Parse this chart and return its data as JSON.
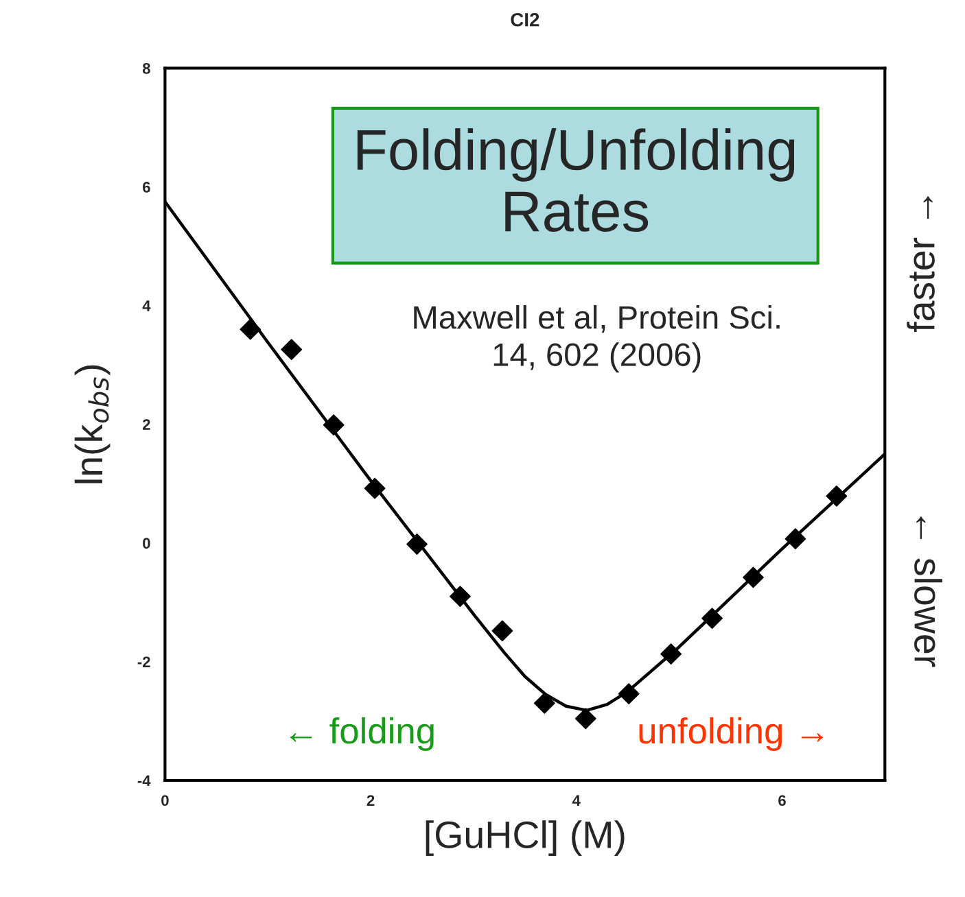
{
  "chart_data": {
    "type": "scatter",
    "title": "CI2",
    "xlabel": "[GuHCl] (M)",
    "ylabel": "ln(k$_{obs}$)",
    "xlim": [
      0,
      7
    ],
    "xticks": [
      0,
      2,
      4,
      6
    ],
    "ylim": [
      -4,
      8
    ],
    "yticks": [
      -4,
      -2,
      0,
      2,
      4,
      6,
      8
    ],
    "grid": false,
    "marker": "diamond",
    "series": [
      {
        "color": "#000000",
        "x": [
          0.83,
          1.23,
          1.64,
          2.04,
          2.45,
          2.87,
          3.28,
          3.69,
          4.09,
          4.51,
          4.92,
          5.32,
          5.72,
          6.13,
          6.53
        ],
        "values": [
          3.6,
          3.26,
          1.99,
          0.92,
          -0.02,
          -0.9,
          -1.48,
          -2.7,
          -2.96,
          -2.54,
          -1.87,
          -1.27,
          -0.58,
          0.07,
          0.79
        ]
      },
      {
        "type": "line",
        "color": "#000000",
        "marker": "none",
        "line_style": "solid",
        "x": [
          0,
          1,
          2,
          3,
          3.3,
          3.5,
          3.7,
          3.9,
          4.1,
          4.3,
          4.5,
          5,
          6,
          7
        ],
        "values": [
          5.75,
          3.38,
          1.05,
          -1.2,
          -1.85,
          -2.25,
          -2.55,
          -2.75,
          -2.82,
          -2.72,
          -2.5,
          -1.75,
          -0.1,
          1.5
        ]
      }
    ],
    "annotations": [
      "Folding/Unfolding\nRates",
      "Maxwell et al, Protein Sci.\n14, 602 (2006)",
      "← folding",
      "unfolding →",
      "faster →",
      "← slower"
    ]
  }
}
